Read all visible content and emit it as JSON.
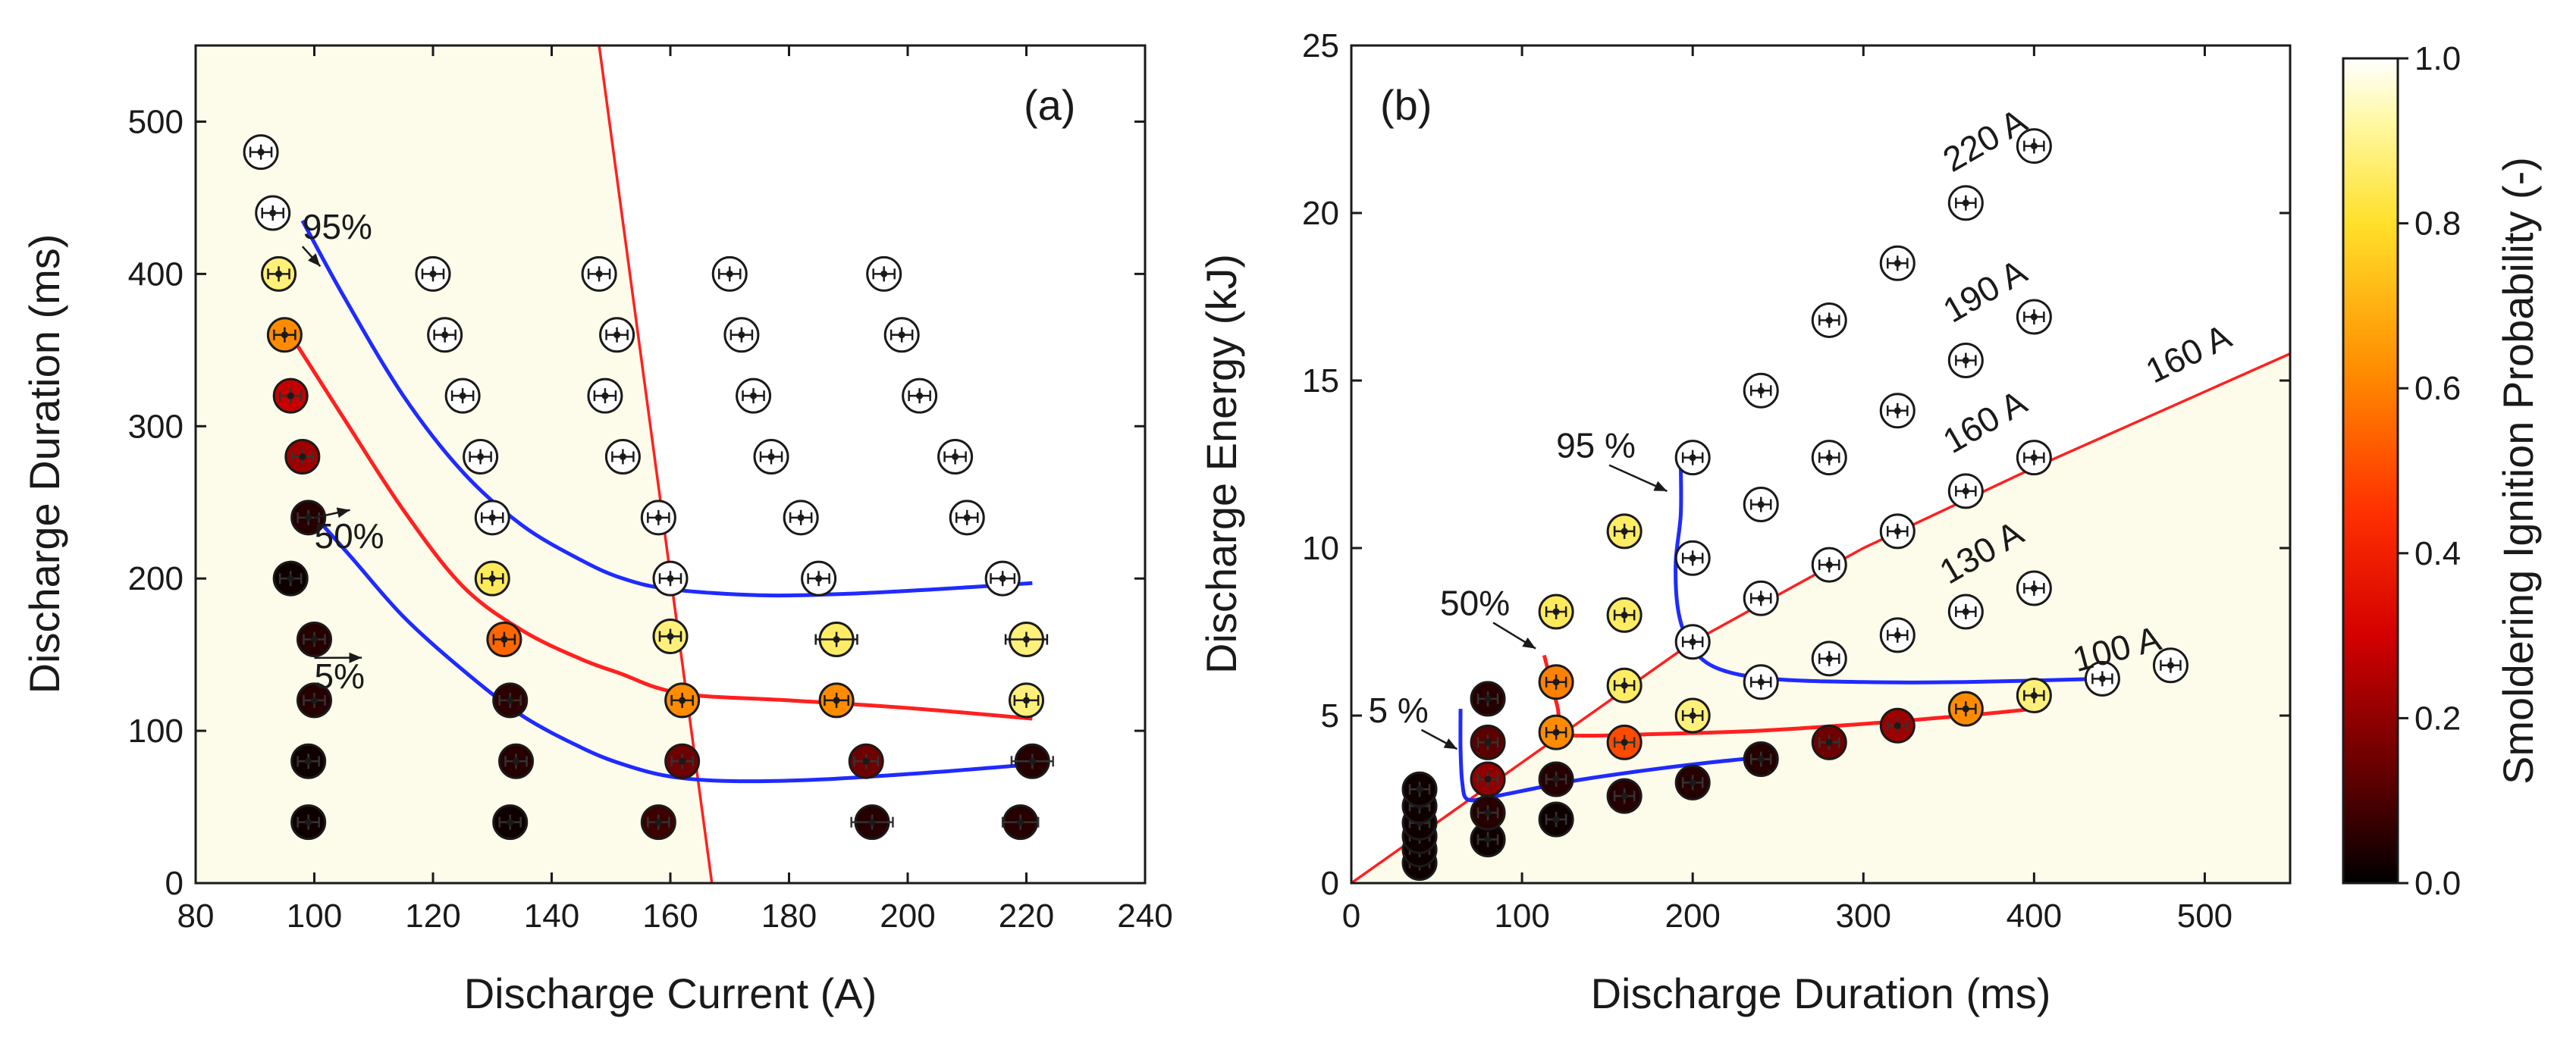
{
  "colors": {
    "background_region": "#fdfbea",
    "boundary_line": "#ff2020",
    "contour_95": "#1f2bff",
    "contour_50": "#ff2020",
    "contour_5": "#1f2bff",
    "axis": "#1a1a1a"
  },
  "colorbar": {
    "label": "Smoldering Ignition Probability (-)",
    "ticks": [
      "0.0",
      "0.2",
      "0.4",
      "0.6",
      "0.8",
      "1.0"
    ],
    "range": [
      0,
      1
    ]
  },
  "chart_data": [
    {
      "type": "scatter",
      "panel_label": "(a)",
      "xlabel": "Discharge Current (A)",
      "ylabel": "Discharge Duration (ms)",
      "xlim": [
        80,
        240
      ],
      "ylim": [
        0,
        550
      ],
      "xticks": [
        "80",
        "100",
        "120",
        "140",
        "160",
        "180",
        "200",
        "220",
        "240"
      ],
      "yticks": [
        "0",
        "100",
        "200",
        "300",
        "400",
        "500"
      ],
      "xtick_values": [
        80,
        100,
        120,
        140,
        160,
        180,
        200,
        220,
        240
      ],
      "ytick_values": [
        0,
        100,
        200,
        300,
        400,
        500
      ],
      "annotations": [
        "95%",
        "50%",
        "5%"
      ],
      "annotation_anchors": [
        {
          "text_at": [
            98,
            423
          ],
          "arrow_to": [
            101,
            405
          ]
        },
        {
          "text_at": [
            100,
            220
          ],
          "arrow_to": [
            106,
            245
          ]
        },
        {
          "text_at": [
            100,
            128
          ],
          "arrow_to": [
            108,
            148
          ]
        }
      ],
      "boundary_line": {
        "x": [
          148,
          167
        ],
        "y": [
          550,
          0
        ]
      },
      "curves": [
        {
          "name": "95%",
          "x": [
            98,
            105,
            115,
            125,
            135,
            145,
            152,
            160,
            175,
            190,
            205,
            221
          ],
          "y": [
            435,
            385,
            320,
            270,
            235,
            212,
            200,
            193,
            189,
            190,
            193,
            197
          ]
        },
        {
          "name": "50%",
          "x": [
            96,
            105,
            115,
            125,
            135,
            145,
            152,
            158,
            165,
            180,
            200,
            221
          ],
          "y": [
            360,
            305,
            245,
            195,
            166,
            147,
            137,
            128,
            123,
            120,
            115,
            108
          ]
        },
        {
          "name": "5%",
          "x": [
            98,
            106,
            115,
            125,
            135,
            145,
            152,
            160,
            170,
            185,
            205,
            221
          ],
          "y": [
            250,
            215,
            175,
            140,
            110,
            89,
            78,
            70,
            67,
            68,
            73,
            78
          ]
        }
      ],
      "points": [
        {
          "x": 91,
          "y": 480,
          "p": 1.0,
          "xerr": 1
        },
        {
          "x": 93,
          "y": 440,
          "p": 1.0,
          "xerr": 1.5
        },
        {
          "x": 94,
          "y": 400,
          "p": 0.88,
          "xerr": 1
        },
        {
          "x": 95,
          "y": 360,
          "p": 0.62,
          "xerr": 1
        },
        {
          "x": 96,
          "y": 320,
          "p": 0.28,
          "xerr": 1
        },
        {
          "x": 98,
          "y": 280,
          "p": 0.22,
          "xerr": 0.5
        },
        {
          "x": 99,
          "y": 240,
          "p": 0.05,
          "xerr": 0.5
        },
        {
          "x": 96,
          "y": 200,
          "p": 0.02,
          "xerr": 0.5
        },
        {
          "x": 100,
          "y": 160,
          "p": 0.05,
          "xerr": 0.5
        },
        {
          "x": 100,
          "y": 120,
          "p": 0.05,
          "xerr": 0.5
        },
        {
          "x": 99,
          "y": 80,
          "p": 0.02,
          "xerr": 0.5
        },
        {
          "x": 99,
          "y": 40,
          "p": 0.02,
          "xerr": 0.5
        },
        {
          "x": 120,
          "y": 400,
          "p": 1.0,
          "xerr": 1
        },
        {
          "x": 122,
          "y": 360,
          "p": 1.0,
          "xerr": 1
        },
        {
          "x": 125,
          "y": 320,
          "p": 1.0,
          "xerr": 1
        },
        {
          "x": 128,
          "y": 280,
          "p": 1.0,
          "xerr": 1
        },
        {
          "x": 130,
          "y": 240,
          "p": 1.0,
          "xerr": 1
        },
        {
          "x": 130,
          "y": 200,
          "p": 0.85,
          "xerr": 1
        },
        {
          "x": 132,
          "y": 160,
          "p": 0.55,
          "xerr": 1
        },
        {
          "x": 133,
          "y": 120,
          "p": 0.06,
          "xerr": 0.5
        },
        {
          "x": 134,
          "y": 80,
          "p": 0.05,
          "xerr": 0.5
        },
        {
          "x": 133,
          "y": 40,
          "p": 0.02,
          "xerr": 0.5
        },
        {
          "x": 148,
          "y": 400,
          "p": 1.0,
          "xerr": 1
        },
        {
          "x": 151,
          "y": 360,
          "p": 1.0,
          "xerr": 1
        },
        {
          "x": 149,
          "y": 320,
          "p": 1.0,
          "xerr": 1.5
        },
        {
          "x": 152,
          "y": 280,
          "p": 1.0,
          "xerr": 1
        },
        {
          "x": 158,
          "y": 240,
          "p": 1.0,
          "xerr": 1
        },
        {
          "x": 160,
          "y": 200,
          "p": 1.0,
          "xerr": 1.5
        },
        {
          "x": 160,
          "y": 162,
          "p": 0.88,
          "xerr": 1.5
        },
        {
          "x": 162,
          "y": 120,
          "p": 0.62,
          "xerr": 1.5
        },
        {
          "x": 162,
          "y": 80,
          "p": 0.15,
          "xerr": 1
        },
        {
          "x": 158,
          "y": 40,
          "p": 0.08,
          "xerr": 0.5
        },
        {
          "x": 170,
          "y": 400,
          "p": 1.0,
          "xerr": 1.5
        },
        {
          "x": 172,
          "y": 360,
          "p": 1.0,
          "xerr": 1.5
        },
        {
          "x": 174,
          "y": 320,
          "p": 1.0,
          "xerr": 1.5
        },
        {
          "x": 177,
          "y": 280,
          "p": 1.0,
          "xerr": 1.5
        },
        {
          "x": 182,
          "y": 240,
          "p": 1.0,
          "xerr": 1.5
        },
        {
          "x": 185,
          "y": 200,
          "p": 1.0,
          "xerr": 1.5
        },
        {
          "x": 188,
          "y": 160,
          "p": 0.86,
          "xerr": 3.5
        },
        {
          "x": 188,
          "y": 120,
          "p": 0.62,
          "xerr": 2
        },
        {
          "x": 193,
          "y": 80,
          "p": 0.15,
          "xerr": 2
        },
        {
          "x": 194,
          "y": 40,
          "p": 0.05,
          "xerr": 3.5
        },
        {
          "x": 196,
          "y": 400,
          "p": 1.0,
          "xerr": 1.5
        },
        {
          "x": 199,
          "y": 360,
          "p": 1.0,
          "xerr": 1.5
        },
        {
          "x": 202,
          "y": 320,
          "p": 1.0,
          "xerr": 1.5
        },
        {
          "x": 208,
          "y": 280,
          "p": 1.0,
          "xerr": 1.5
        },
        {
          "x": 210,
          "y": 240,
          "p": 1.0,
          "xerr": 1.5
        },
        {
          "x": 216,
          "y": 200,
          "p": 1.0,
          "xerr": 2
        },
        {
          "x": 220,
          "y": 160,
          "p": 0.88,
          "xerr": 3.5
        },
        {
          "x": 220,
          "y": 120,
          "p": 0.88,
          "xerr": 2
        },
        {
          "x": 221,
          "y": 80,
          "p": 0.05,
          "xerr": 3.5
        },
        {
          "x": 219,
          "y": 40,
          "p": 0.05,
          "xerr": 3
        }
      ]
    },
    {
      "type": "scatter",
      "panel_label": "(b)",
      "xlabel": "Discharge Duration (ms)",
      "ylabel": "Discharge Energy (kJ)",
      "xlim": [
        0,
        550
      ],
      "ylim": [
        0,
        25
      ],
      "xticks": [
        "0",
        "100",
        "200",
        "300",
        "400",
        "500"
      ],
      "yticks": [
        "0",
        "5",
        "10",
        "15",
        "20",
        "25"
      ],
      "xtick_values": [
        0,
        100,
        200,
        300,
        400,
        500
      ],
      "ytick_values": [
        0,
        5,
        10,
        15,
        20,
        25
      ],
      "annotations": [
        "95 %",
        "50%",
        "5 %",
        "220 A",
        "190 A",
        "160 A",
        "130 A",
        "100 A",
        "160 A"
      ],
      "annotation_anchors": [
        {
          "text_at": [
            120,
            12.7
          ],
          "arrow_to": [
            185,
            11.7
          ]
        },
        {
          "text_at": [
            52,
            8.0
          ],
          "arrow_to": [
            108,
            7.0
          ]
        },
        {
          "text_at": [
            10,
            4.8
          ],
          "arrow_to": [
            62,
            4.0
          ]
        },
        {
          "text_at": [
            352,
            21.2
          ],
          "rotate": -30
        },
        {
          "text_at": [
            352,
            16.7
          ],
          "rotate": -30
        },
        {
          "text_at": [
            352,
            12.8
          ],
          "rotate": -30
        },
        {
          "text_at": [
            350,
            8.9
          ],
          "rotate": -30
        },
        {
          "text_at": [
            425,
            6.3
          ],
          "rotate": -15
        },
        {
          "text_at": [
            470,
            14.9
          ],
          "rotate": -26
        }
      ],
      "boundary_line": {
        "x": [
          0,
          100,
          200,
          300,
          400,
          550
        ],
        "y": [
          0,
          3.6,
          7.2,
          10.0,
          12.4,
          15.8
        ]
      },
      "curves": [
        {
          "name": "95%",
          "x": [
            193,
            193,
            190,
            192,
            200,
            215,
            245,
            300,
            360,
            440
          ],
          "y": [
            12.5,
            11.0,
            9.5,
            8.0,
            7.0,
            6.4,
            6.1,
            6.0,
            6.0,
            6.1
          ]
        },
        {
          "name": "50%",
          "x": [
            113,
            118,
            121,
            122,
            124,
            140,
            180,
            240,
            300,
            360,
            400
          ],
          "y": [
            6.8,
            5.8,
            5.2,
            4.7,
            4.45,
            4.4,
            4.45,
            4.55,
            4.75,
            5.0,
            5.2
          ]
        },
        {
          "name": "5%",
          "x": [
            64,
            64,
            65,
            68,
            80,
            100,
            130,
            170,
            210,
            250
          ],
          "y": [
            5.2,
            4.0,
            3.0,
            2.5,
            2.55,
            2.75,
            3.05,
            3.35,
            3.6,
            3.8
          ]
        }
      ],
      "points": [
        {
          "x": 40,
          "y": 0.6,
          "p": 0.02
        },
        {
          "x": 40,
          "y": 1.0,
          "p": 0.02
        },
        {
          "x": 40,
          "y": 1.4,
          "p": 0.02
        },
        {
          "x": 40,
          "y": 1.8,
          "p": 0.02
        },
        {
          "x": 40,
          "y": 2.3,
          "p": 0.02
        },
        {
          "x": 40,
          "y": 2.8,
          "p": 0.02
        },
        {
          "x": 80,
          "y": 1.3,
          "p": 0.02
        },
        {
          "x": 80,
          "y": 2.1,
          "p": 0.05
        },
        {
          "x": 80,
          "y": 3.1,
          "p": 0.2
        },
        {
          "x": 80,
          "y": 4.2,
          "p": 0.12
        },
        {
          "x": 80,
          "y": 5.5,
          "p": 0.05
        },
        {
          "x": 120,
          "y": 1.9,
          "p": 0.02
        },
        {
          "x": 120,
          "y": 3.1,
          "p": 0.05
        },
        {
          "x": 120,
          "y": 4.5,
          "p": 0.62
        },
        {
          "x": 120,
          "y": 6.0,
          "p": 0.6
        },
        {
          "x": 120,
          "y": 8.1,
          "p": 0.85
        },
        {
          "x": 160,
          "y": 2.6,
          "p": 0.05
        },
        {
          "x": 160,
          "y": 4.2,
          "p": 0.5
        },
        {
          "x": 160,
          "y": 5.9,
          "p": 0.86
        },
        {
          "x": 160,
          "y": 8.0,
          "p": 0.86
        },
        {
          "x": 160,
          "y": 10.5,
          "p": 0.86
        },
        {
          "x": 200,
          "y": 3.0,
          "p": 0.05
        },
        {
          "x": 200,
          "y": 5.0,
          "p": 0.88
        },
        {
          "x": 200,
          "y": 7.2,
          "p": 1.0
        },
        {
          "x": 200,
          "y": 9.7,
          "p": 1.0
        },
        {
          "x": 200,
          "y": 12.7,
          "p": 1.0
        },
        {
          "x": 240,
          "y": 3.7,
          "p": 0.05
        },
        {
          "x": 240,
          "y": 6.0,
          "p": 1.0
        },
        {
          "x": 240,
          "y": 8.5,
          "p": 1.0
        },
        {
          "x": 240,
          "y": 11.3,
          "p": 1.0
        },
        {
          "x": 240,
          "y": 14.7,
          "p": 1.0
        },
        {
          "x": 280,
          "y": 4.2,
          "p": 0.15
        },
        {
          "x": 280,
          "y": 6.7,
          "p": 1.0
        },
        {
          "x": 280,
          "y": 9.5,
          "p": 1.0
        },
        {
          "x": 280,
          "y": 12.7,
          "p": 1.0
        },
        {
          "x": 280,
          "y": 16.8,
          "p": 1.0
        },
        {
          "x": 320,
          "y": 4.7,
          "p": 0.22
        },
        {
          "x": 320,
          "y": 7.4,
          "p": 1.0
        },
        {
          "x": 320,
          "y": 10.5,
          "p": 1.0
        },
        {
          "x": 320,
          "y": 14.1,
          "p": 1.0
        },
        {
          "x": 320,
          "y": 18.5,
          "p": 1.0
        },
        {
          "x": 360,
          "y": 5.2,
          "p": 0.62
        },
        {
          "x": 360,
          "y": 8.1,
          "p": 1.0
        },
        {
          "x": 360,
          "y": 11.7,
          "p": 1.0
        },
        {
          "x": 360,
          "y": 15.6,
          "p": 1.0
        },
        {
          "x": 360,
          "y": 20.3,
          "p": 1.0
        },
        {
          "x": 400,
          "y": 5.6,
          "p": 0.88
        },
        {
          "x": 400,
          "y": 8.8,
          "p": 1.0
        },
        {
          "x": 400,
          "y": 12.7,
          "p": 1.0
        },
        {
          "x": 400,
          "y": 16.9,
          "p": 1.0
        },
        {
          "x": 400,
          "y": 22.0,
          "p": 1.0
        },
        {
          "x": 440,
          "y": 6.1,
          "p": 1.0
        },
        {
          "x": 480,
          "y": 6.5,
          "p": 1.0
        }
      ]
    }
  ]
}
